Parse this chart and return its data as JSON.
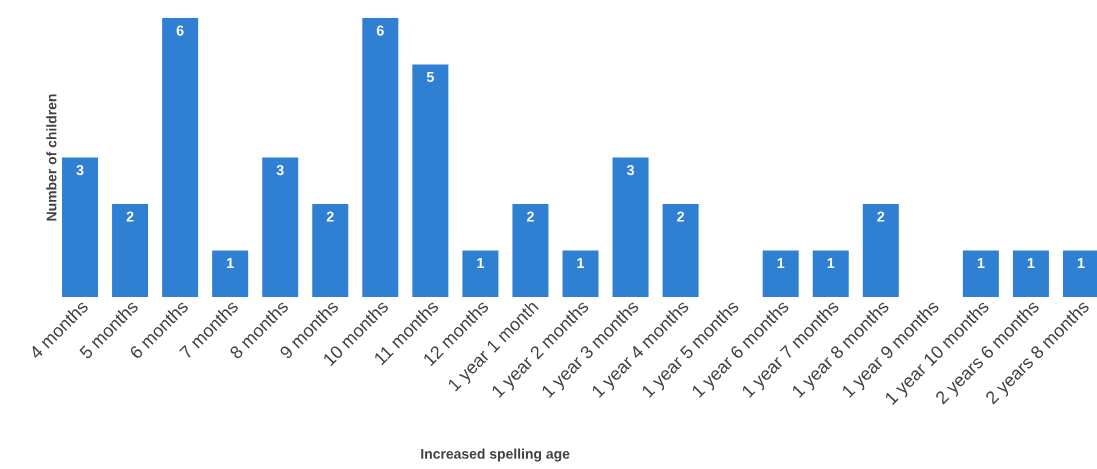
{
  "chart_data": {
    "type": "bar",
    "xlabel": "Increased spelling age",
    "ylabel": "Number of children",
    "categories": [
      "4 months",
      "5 months",
      "6 months",
      "7 months",
      "8 months",
      "9 months",
      "10 months",
      "11 months",
      "12 months",
      "1 year 1 month",
      "1 year 2 months",
      "1 year 3 months",
      "1 year 4 months",
      "1 year 5 months",
      "1 year 6 months",
      "1 year 7 months",
      "1 year 8 months",
      "1 year 9 months",
      "1 year 10 months",
      "2 years 6 months",
      "2 years 8 months"
    ],
    "values": [
      3,
      2,
      6,
      1,
      3,
      2,
      6,
      5,
      1,
      2,
      1,
      3,
      2,
      null,
      1,
      1,
      2,
      null,
      1,
      1,
      1
    ],
    "color": "#2f7fd3",
    "ylim": [
      0,
      6
    ],
    "data_labels": true
  }
}
